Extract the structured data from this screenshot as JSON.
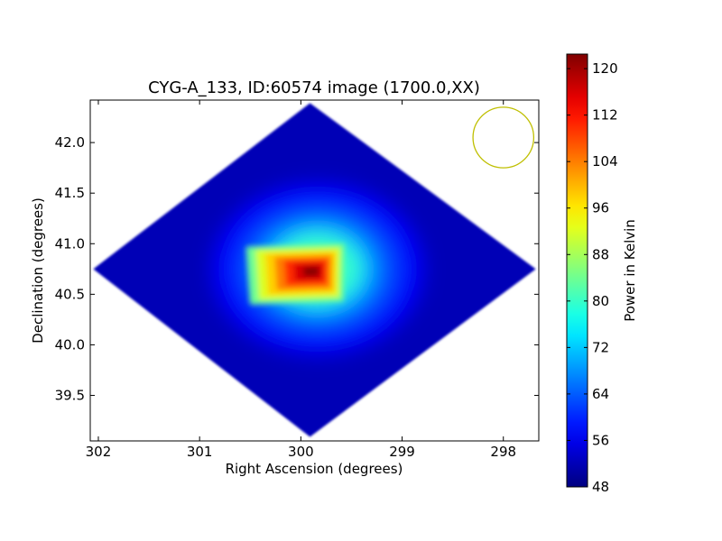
{
  "chart_data": {
    "type": "heatmap",
    "title": "CYG-A_133, ID:60574 image (1700.0,XX)",
    "xlabel": "Right Ascension (degrees)",
    "ylabel": "Declination (degrees)",
    "x_range": [
      302.08,
      297.65
    ],
    "y_range": [
      39.05,
      42.42
    ],
    "x_ticks": [
      302,
      301,
      300,
      299,
      298
    ],
    "x_tick_labels": [
      "302",
      "301",
      "300",
      "299",
      "298"
    ],
    "y_ticks": [
      39.5,
      40.0,
      40.5,
      41.0,
      41.5,
      42.0
    ],
    "y_tick_labels": [
      "39.5",
      "40.0",
      "40.5",
      "41.0",
      "41.5",
      "42.0"
    ],
    "x_reversed": true,
    "grid": false,
    "colormap": "jet",
    "colorbar": {
      "label": "Power in Kelvin",
      "range": [
        48,
        122.5
      ],
      "ticks": [
        48,
        56,
        64,
        72,
        80,
        88,
        96,
        104,
        112,
        120
      ],
      "tick_labels": [
        "48",
        "56",
        "64",
        "72",
        "80",
        "88",
        "96",
        "104",
        "112",
        "120"
      ]
    },
    "coverage_vertices": [
      {
        "ra": 302.05,
        "dec": 40.75
      },
      {
        "ra": 299.91,
        "dec": 42.39
      },
      {
        "ra": 297.68,
        "dec": 40.75
      },
      {
        "ra": 299.91,
        "dec": 39.09
      }
    ],
    "background_level": 52,
    "source": {
      "ra": 299.87,
      "dec": 40.73,
      "peak": 122,
      "region_corners": [
        {
          "ra": 300.54,
          "dec": 40.97
        },
        {
          "ra": 299.57,
          "dec": 41.0
        },
        {
          "ra": 299.58,
          "dec": 40.43
        },
        {
          "ra": 300.5,
          "dec": 40.4
        }
      ]
    },
    "beam": {
      "ra": 298.0,
      "dec": 42.05,
      "radius_deg": 0.3,
      "color": "#bfbf00"
    }
  }
}
